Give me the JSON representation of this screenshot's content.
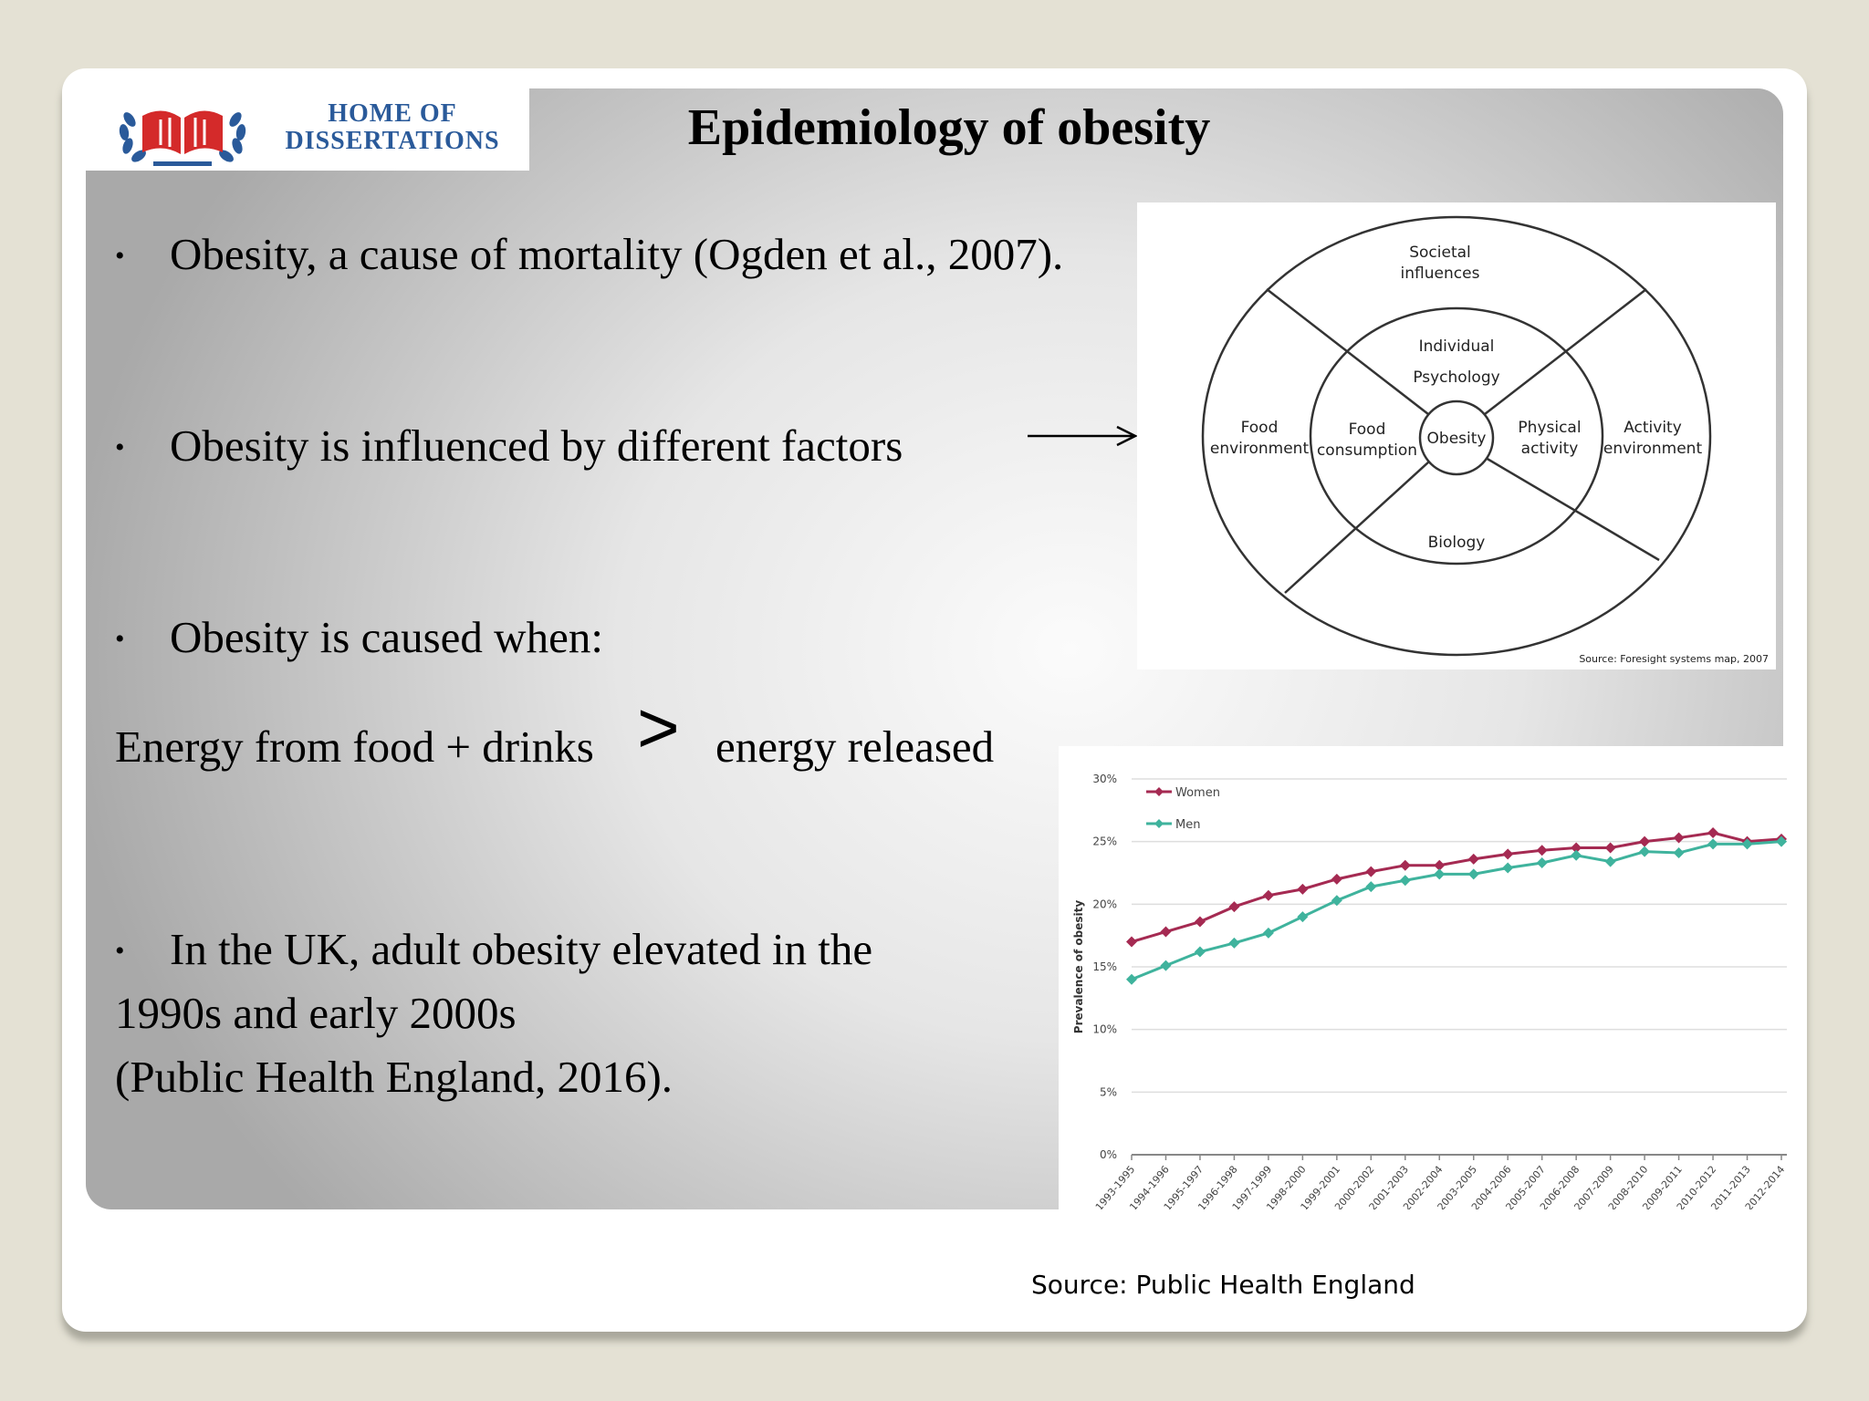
{
  "logo": {
    "line1": "HOME OF",
    "line2": "DISSERTATIONS"
  },
  "title": "Epidemiology of obesity",
  "bullets": {
    "b1": "Obesity, a cause of mortality (Ogden et al., 2007).",
    "b2": "Obesity is influenced by different factors",
    "b3": "Obesity is caused when:",
    "b4_line1": "In the UK, adult obesity elevated in the",
    "b4_line2": "1990s and early 2000s",
    "b4_line3": "(Public Health England, 2016)."
  },
  "equation": {
    "left": "Energy from food + drinks",
    "operator": ">",
    "right": "energy released"
  },
  "diagram": {
    "societal_l1": "Societal",
    "societal_l2": "influences",
    "individual_l1": "Individual",
    "individual_l2": "Psychology",
    "food_env_l1": "Food",
    "food_env_l2": "environment",
    "food_cons_l1": "Food",
    "food_cons_l2": "consumption",
    "obesity": "Obesity",
    "physical_l1": "Physical",
    "physical_l2": "activity",
    "activity_env_l1": "Activity",
    "activity_env_l2": "environment",
    "biology": "Biology",
    "source": "Source: Foresight systems map, 2007"
  },
  "chart_source": "Source:  Public Health England",
  "chart_data": {
    "type": "line",
    "ylabel": "Prevalence of obesity",
    "xlabel": "",
    "ylim": [
      0,
      30
    ],
    "y_ticks": [
      "0%",
      "5%",
      "10%",
      "15%",
      "20%",
      "25%",
      "30%"
    ],
    "legend_position": "top-left",
    "categories": [
      "1993-1995",
      "1994-1996",
      "1995-1997",
      "1996-1998",
      "1997-1999",
      "1998-2000",
      "1999-2001",
      "2000-2002",
      "2001-2003",
      "2002-2004",
      "2003-2005",
      "2004-2006",
      "2005-2007",
      "2006-2008",
      "2007-2009",
      "2008-2010",
      "2009-2011",
      "2010-2012",
      "2011-2013",
      "2012-2014"
    ],
    "series": [
      {
        "name": "Women",
        "color": "#a52a52",
        "values": [
          17.0,
          17.8,
          18.6,
          19.8,
          20.7,
          21.2,
          22.0,
          22.6,
          23.1,
          23.1,
          23.6,
          24.0,
          24.3,
          24.5,
          24.5,
          25.0,
          25.3,
          25.7,
          25.0,
          25.2
        ]
      },
      {
        "name": "Men",
        "color": "#3fb39d",
        "values": [
          14.0,
          15.1,
          16.2,
          16.9,
          17.7,
          19.0,
          20.3,
          21.4,
          21.9,
          22.4,
          22.4,
          22.9,
          23.3,
          23.9,
          23.4,
          24.2,
          24.1,
          24.8,
          24.8,
          25.0
        ]
      }
    ]
  }
}
